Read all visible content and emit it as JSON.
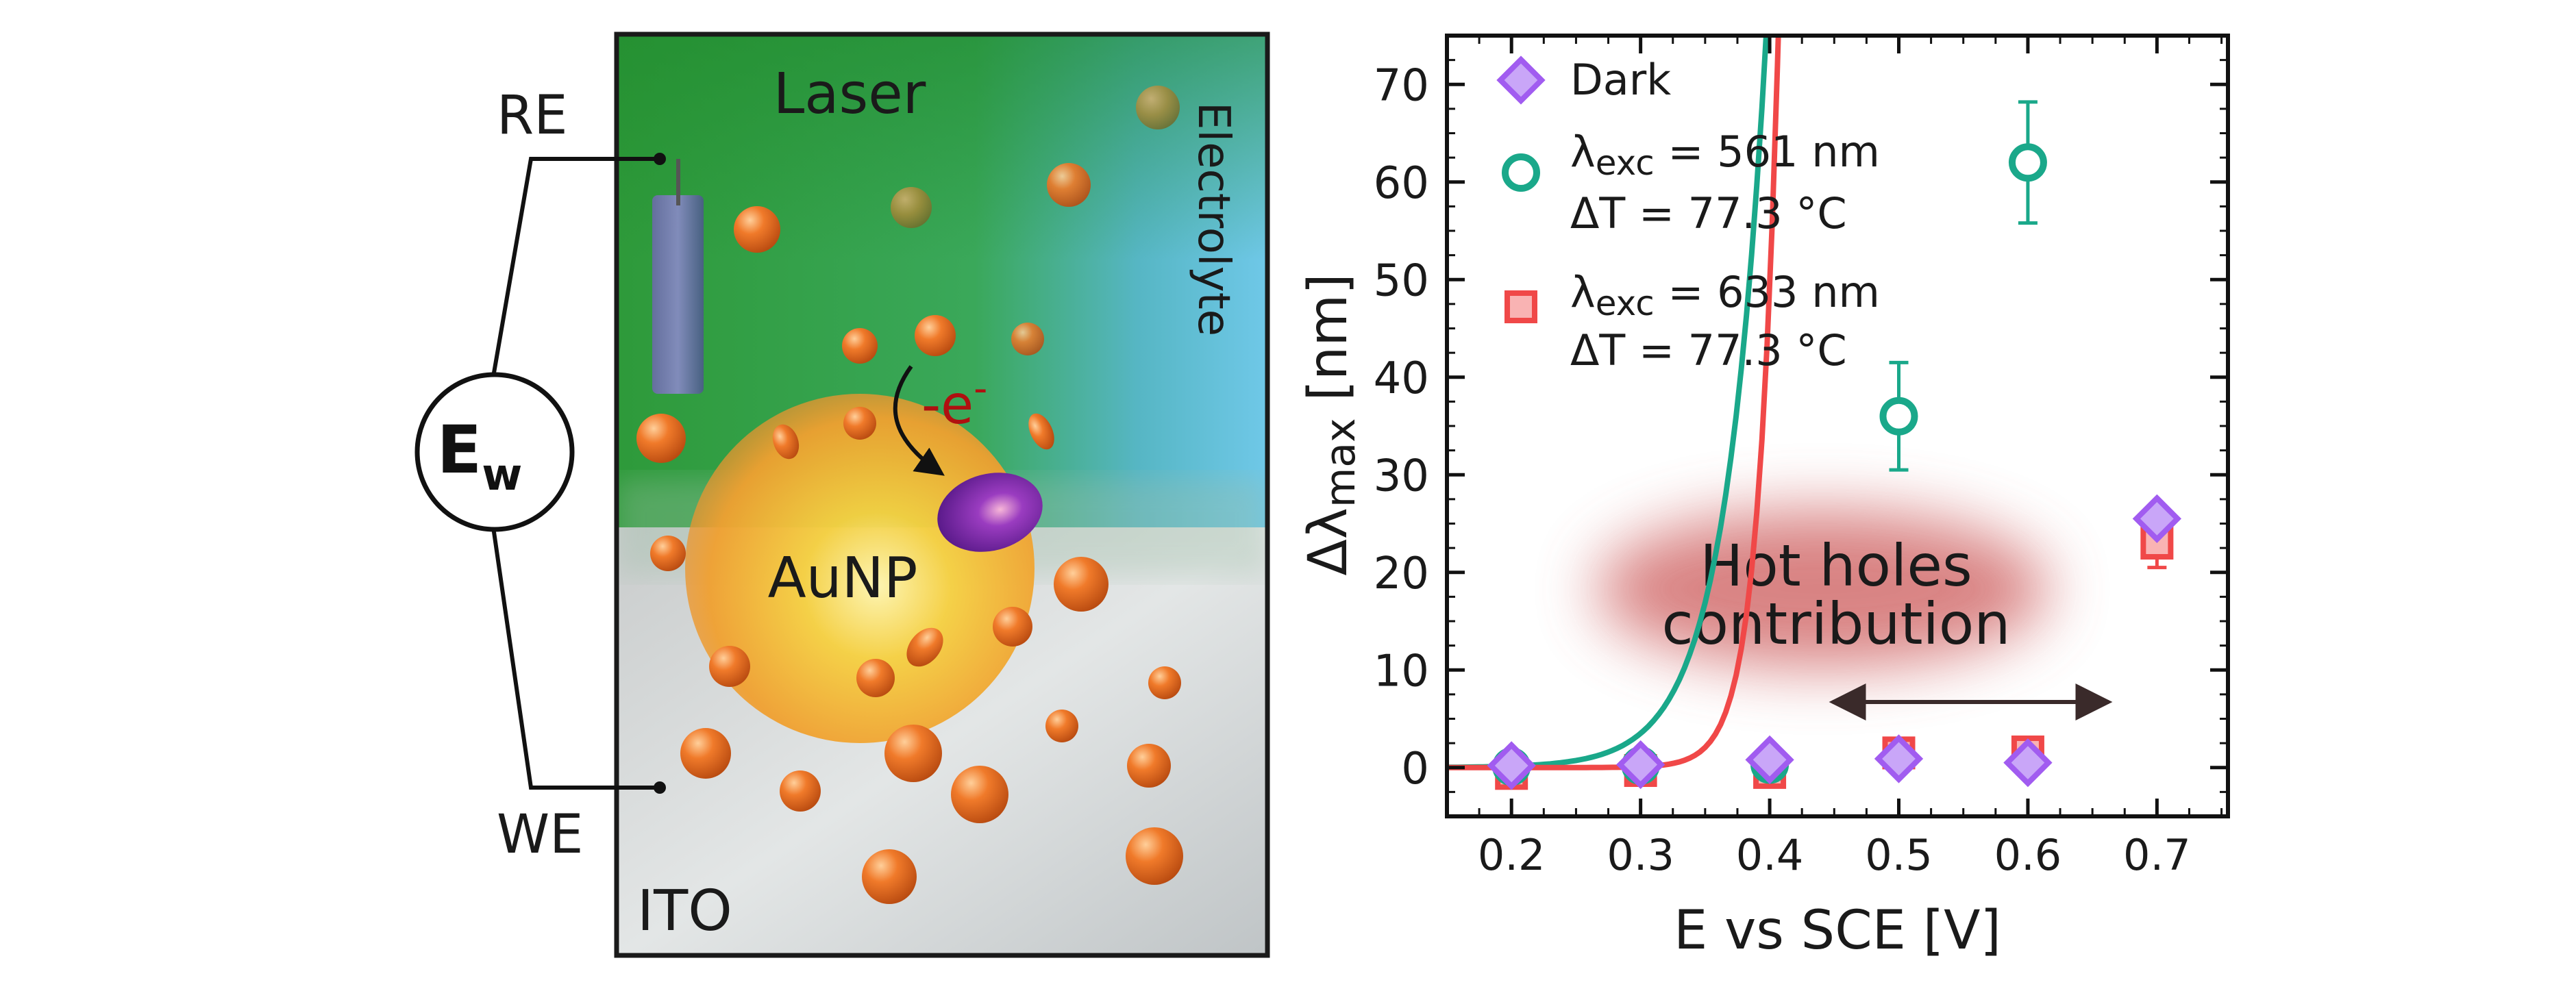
{
  "schematic": {
    "laser_label": "Laser",
    "electrolyte_label": "Electrolyte",
    "ito_label": "ITO",
    "aunp_label": "AuNP",
    "electron_label_main": "-e",
    "electron_label_sup": "-",
    "re_label": "RE",
    "we_label": "WE",
    "ew_label_main": "E",
    "ew_label_sub": "w"
  },
  "chart_data": {
    "type": "scatter",
    "xlabel": "E vs SCE [V]",
    "ylabel_prefix": "Δλ",
    "ylabel_sub": "max",
    "ylabel_suffix": " [nm]",
    "xlim": [
      0.15,
      0.755
    ],
    "ylim": [
      -5,
      75
    ],
    "xticks": [
      0.2,
      0.3,
      0.4,
      0.5,
      0.6,
      0.7
    ],
    "yticks": [
      0,
      10,
      20,
      30,
      40,
      50,
      60,
      70
    ],
    "grid": false,
    "legend_position": "top-left",
    "annotation": {
      "line1": "Hot holes",
      "line2": "contribution"
    },
    "series": [
      {
        "name": "Dark",
        "marker": "diamond",
        "color": "#a15cf0",
        "x": [
          0.2,
          0.3,
          0.4,
          0.5,
          0.6,
          0.7
        ],
        "y": [
          0.2,
          0.3,
          0.8,
          0.9,
          0.5,
          25.5
        ],
        "err": [
          0,
          0,
          0,
          0,
          0,
          0
        ]
      },
      {
        "name_prefix": "λ",
        "name_sub": "exc",
        "name_rest": " = 561 nm",
        "name_line2": "ΔT = 77.3 °C",
        "marker": "circle",
        "color": "#1aa88a",
        "x": [
          0.2,
          0.3,
          0.4,
          0.5,
          0.6
        ],
        "y": [
          0.1,
          0.2,
          0.3,
          36,
          62
        ],
        "err": [
          0,
          0,
          0,
          5.5,
          6.2
        ],
        "fit": {
          "a": 0.15,
          "k": 31.5,
          "x0": 0.2
        }
      },
      {
        "name_prefix": "λ",
        "name_sub": "exc",
        "name_rest": " = 633 nm",
        "name_line2": "ΔT = 77.3 °C",
        "marker": "square",
        "color": "#f04848",
        "x": [
          0.2,
          0.3,
          0.4,
          0.5,
          0.6,
          0.7
        ],
        "y": [
          -0.6,
          -0.3,
          -0.5,
          1.5,
          1.6,
          23
        ],
        "err": [
          0,
          0,
          0,
          0,
          0,
          2.5
        ],
        "fit": {
          "a": 0.000153,
          "k": 63.4,
          "x0": 0.2
        }
      }
    ]
  }
}
